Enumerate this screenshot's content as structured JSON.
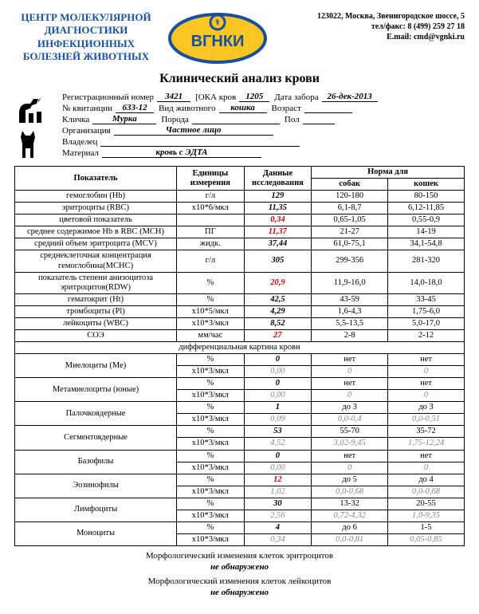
{
  "header": {
    "org": "ЦЕНТР МОЛЕКУЛЯРНОЙ ДИАГНОСТИКИ ИНФЕКЦИОННЫХ БОЛЕЗНЕЙ ЖИВОТНЫХ",
    "logo_text": "ВГНКИ",
    "addr1": "123022, Москва,   Звенигородское шоссе, 5",
    "addr2": "тел/факс: 8 (499) 259 27 18",
    "addr3": "E.mail: cmd@vgnki.ru"
  },
  "title": "Клинический анализ крови",
  "meta": {
    "reg_label": "Регистрационный номер",
    "reg": "3421",
    "oka_label": "[ОКА кров",
    "oka": "1205",
    "date_label": "Дата забора",
    "date": "26-дек-2013",
    "kvit_label": "№ квитанции",
    "kvit": "633-12",
    "species_label": "Вид животного",
    "species": "кошка",
    "age_label": "Возраст",
    "age": "",
    "name_label": "Кличка",
    "name": "Мурка",
    "breed_label": "Порода",
    "breed": "",
    "sex_label": "Пол",
    "sex": "",
    "org_label": "Организация",
    "org": "Частное лицо",
    "owner_label": "Владелец",
    "owner": "",
    "material_label": "Материал",
    "material": "кровь с ЭДТА"
  },
  "columns": {
    "param": "Показатель",
    "units": "Единицы измерения",
    "data": "Данные исследования",
    "norm": "Норма для",
    "dogs": "собак",
    "cats": "кошек"
  },
  "main": [
    {
      "p": "гемоглобин (Hb)",
      "u": "г/л",
      "v": "129",
      "d": "120-180",
      "c": "80-150",
      "red": false
    },
    {
      "p": "эритроциты (RBC)",
      "u": "х10*6/мкл",
      "v": "11,35",
      "d": "6,1-8,7",
      "c": "6,12-11,85",
      "red": false
    },
    {
      "p": "цветовой показатель",
      "u": "",
      "v": "0,34",
      "d": "0,65-1,05",
      "c": "0,55-0,9",
      "red": true
    },
    {
      "p": "среднее содержимое Hb в RBC (MCH)",
      "u": "ПГ",
      "v": "11,37",
      "d": "21-27",
      "c": "14-19",
      "red": true
    },
    {
      "p": "средний объем эритроцита (MCV)",
      "u": "жидк.",
      "v": "37,44",
      "d": "61,0-75,1",
      "c": "34,1-54,8",
      "red": false
    },
    {
      "p": "среднеклеточная концентрация гемоглобина(MCHC)",
      "u": "г/л",
      "v": "305",
      "d": "299-356",
      "c": "281-320",
      "red": false
    },
    {
      "p": "показатель степени анизоцитоза эритроцитов(RDW)",
      "u": "%",
      "v": "20,9",
      "d": "11,9-16,0",
      "c": "14,0-18,0",
      "red": true
    },
    {
      "p": "гематокрит (Ht)",
      "u": "%",
      "v": "42,5",
      "d": "43-59",
      "c": "33-45",
      "red": false
    },
    {
      "p": "тромбоциты (Pl)",
      "u": "х10*5/мкл",
      "v": "4,29",
      "d": "1,6-4,3",
      "c": "1,75-6,0",
      "red": false
    },
    {
      "p": "лейкоциты (WBC)",
      "u": "х10*3/мкл",
      "v": "8,52",
      "d": "5,5-13,5",
      "c": "5,0-17,0",
      "red": false
    },
    {
      "p": "СОЭ",
      "u": "мм/час",
      "v": "27",
      "d": "2-8",
      "c": "2-12",
      "red": true
    }
  ],
  "diff_header": "дифференциальная картина крови",
  "diff": [
    {
      "p": "Миелоциты (Ме)",
      "pv": "0",
      "pd": "нет",
      "pc": "нет",
      "av": "0,00",
      "ad": "0",
      "ac": "0"
    },
    {
      "p": "Метамиелоциты (юные)",
      "pv": "0",
      "pd": "нет",
      "pc": "нет",
      "av": "0,00",
      "ad": "0",
      "ac": "0"
    },
    {
      "p": "Палочкоядерные",
      "pv": "1",
      "pd": "до 3",
      "pc": "до 3",
      "av": "0,09",
      "ad": "0,0-0,4",
      "ac": "0,0-0,51"
    },
    {
      "p": "Сегментоядерные",
      "pv": "53",
      "pd": "55-70",
      "pc": "35-72",
      "av": "4,52",
      "ad": "3,02-9,45",
      "ac": "1,75-12,24"
    },
    {
      "p": "Базофилы",
      "pv": "0",
      "pd": "нет",
      "pc": "нет",
      "av": "0,00",
      "ad": "0",
      "ac": "0"
    },
    {
      "p": "Эозинофилы",
      "pv": "12",
      "pd": "до 5",
      "pc": "до 4",
      "pred": true,
      "av": "1,02",
      "ad": "0,0-0,68",
      "ac": "0,0-0,68"
    },
    {
      "p": "Лимфоциты",
      "pv": "30",
      "pd": "13-32",
      "pc": "20-55",
      "av": "2,56",
      "ad": "0,72-4,32",
      "ac": "1,0-9,35"
    },
    {
      "p": "Моноциты",
      "pv": "4",
      "pd": "до 6",
      "pc": "1-5",
      "av": "0,34",
      "ad": "0,0-0,81",
      "ac": "0,05-0,85"
    }
  ],
  "diff_units": {
    "pct": "%",
    "abs": "х10*3/мкл"
  },
  "morph": [
    {
      "t": "Морфологический изменения клеток эритроцитов",
      "r": "не обнаружено"
    },
    {
      "t": "Морфологический изменения клеток лейкоцитов",
      "r": "не обнаружено"
    }
  ],
  "style": {
    "accent_color": "#1a4fa0",
    "logo_fill": "#f9c623",
    "logo_stroke": "#1a4fa0",
    "red_color": "#d00000"
  }
}
